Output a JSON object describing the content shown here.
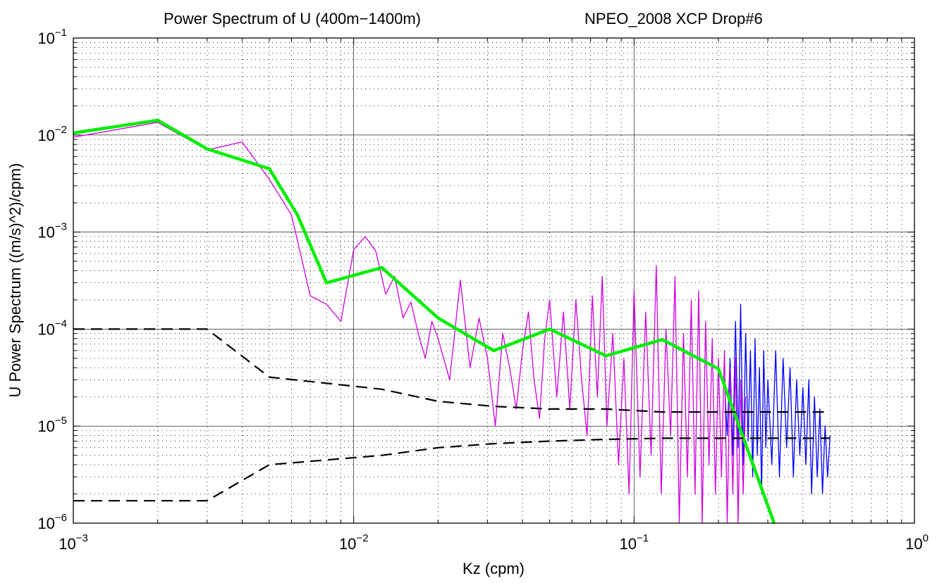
{
  "chart_data": {
    "type": "line",
    "title_left": "Power Spectrum of U  (400m−1400m)",
    "title_right": "NPEO_2008 XCP Drop#6",
    "xlabel": "Kz (cpm)",
    "ylabel": "U Power Spectrum ((m/s)^2)/cpm)",
    "xscale": "log",
    "yscale": "log",
    "xlim": [
      0.001,
      1
    ],
    "ylim": [
      1e-06,
      0.1
    ],
    "x_ticks": [
      {
        "value": 0.001,
        "base": "10",
        "exp": "−3"
      },
      {
        "value": 0.01,
        "base": "10",
        "exp": "−2"
      },
      {
        "value": 0.1,
        "base": "10",
        "exp": "−1"
      },
      {
        "value": 1,
        "base": "10",
        "exp": "0"
      }
    ],
    "y_ticks": [
      {
        "value": 1e-06,
        "base": "10",
        "exp": "−6"
      },
      {
        "value": 1e-05,
        "base": "10",
        "exp": "−5"
      },
      {
        "value": 0.0001,
        "base": "10",
        "exp": "−4"
      },
      {
        "value": 0.001,
        "base": "10",
        "exp": "−3"
      },
      {
        "value": 0.01,
        "base": "10",
        "exp": "−2"
      },
      {
        "value": 0.1,
        "base": "10",
        "exp": "−1"
      }
    ],
    "grid": true,
    "series": [
      {
        "color": "#0000ff",
        "style": "solid",
        "x": [
          0.21,
          0.215,
          0.22,
          0.225,
          0.23,
          0.235,
          0.24,
          0.245,
          0.25,
          0.255,
          0.26,
          0.265,
          0.27,
          0.275,
          0.28,
          0.285,
          0.29,
          0.295,
          0.3,
          0.31,
          0.32,
          0.33,
          0.34,
          0.35,
          0.36,
          0.37,
          0.38,
          0.39,
          0.4,
          0.41,
          0.42,
          0.43,
          0.44,
          0.45,
          0.46,
          0.47,
          0.48,
          0.49,
          0.5
        ],
        "y": [
          3e-05,
          8e-06,
          5e-05,
          5e-06,
          0.00012,
          6e-06,
          0.00018,
          4e-06,
          9e-05,
          7e-06,
          6e-05,
          3e-06,
          8e-05,
          5e-06,
          4e-05,
          2e-06,
          6e-05,
          6e-06,
          3e-05,
          4e-06,
          6e-05,
          3e-06,
          5e-05,
          6e-06,
          4e-05,
          3e-06,
          3e-05,
          5e-06,
          2.5e-05,
          4e-06,
          3e-05,
          2e-06,
          2e-05,
          3e-06,
          1.5e-05,
          2e-06,
          1e-05,
          3e-06,
          8e-06
        ]
      },
      {
        "color": "#d000e0",
        "style": "solid",
        "x": [
          0.001,
          0.002,
          0.003,
          0.004,
          0.005,
          0.006,
          0.007,
          0.008,
          0.009,
          0.01,
          0.011,
          0.012,
          0.013,
          0.014,
          0.015,
          0.016,
          0.017,
          0.018,
          0.019,
          0.02,
          0.022,
          0.024,
          0.026,
          0.028,
          0.03,
          0.032,
          0.034,
          0.036,
          0.038,
          0.04,
          0.042,
          0.044,
          0.046,
          0.048,
          0.05,
          0.053,
          0.056,
          0.059,
          0.062,
          0.065,
          0.068,
          0.071,
          0.074,
          0.077,
          0.08,
          0.084,
          0.088,
          0.092,
          0.096,
          0.1,
          0.105,
          0.11,
          0.115,
          0.12,
          0.125,
          0.13,
          0.135,
          0.14,
          0.145,
          0.15,
          0.155,
          0.16,
          0.165,
          0.17,
          0.175,
          0.18,
          0.185,
          0.19,
          0.195,
          0.2,
          0.205,
          0.21,
          0.215,
          0.22,
          0.225,
          0.23,
          0.235,
          0.24,
          0.245,
          0.25
        ],
        "y": [
          0.0095,
          0.0135,
          0.007,
          0.0085,
          0.0035,
          0.0015,
          0.00022,
          0.00018,
          0.00012,
          0.00066,
          0.0009,
          0.00063,
          0.00023,
          0.00035,
          0.00013,
          0.00019,
          9e-05,
          5e-05,
          0.00012,
          8e-05,
          3e-05,
          0.00032,
          4e-05,
          0.00013,
          5e-05,
          1e-05,
          9e-05,
          4e-05,
          1.5e-05,
          6e-05,
          0.00015,
          3e-05,
          1.2e-05,
          8e-05,
          0.0002,
          2e-05,
          0.00015,
          1.5e-05,
          0.0002,
          3e-05,
          8e-06,
          0.00022,
          2e-05,
          0.00035,
          1e-05,
          9e-05,
          4e-06,
          5e-05,
          2e-06,
          0.00025,
          3e-06,
          0.00015,
          5e-06,
          0.00045,
          2e-06,
          0.0001,
          8e-06,
          0.00035,
          1e-06,
          9e-05,
          3e-06,
          0.0002,
          2e-06,
          0.00025,
          1e-06,
          0.00012,
          4e-06,
          8e-05,
          2e-06,
          5e-05,
          3e-06,
          6e-05,
          1e-06,
          4e-05,
          2e-06,
          5e-05,
          1e-06,
          3e-05,
          2e-06,
          2e-05
        ]
      },
      {
        "color": "#00ee00",
        "style": "solid-thick",
        "x": [
          0.001,
          0.002,
          0.003,
          0.005,
          0.0063,
          0.008,
          0.0126,
          0.02,
          0.0316,
          0.05,
          0.0794,
          0.126,
          0.2,
          0.316
        ],
        "y": [
          0.0105,
          0.0142,
          0.0072,
          0.0045,
          0.0015,
          0.0003,
          0.00043,
          0.00013,
          6e-05,
          0.0001,
          5.3e-05,
          7.8e-05,
          3.9e-05,
          1e-06
        ]
      },
      {
        "color": "#000000",
        "style": "dashed",
        "x": [
          0.001,
          0.003,
          0.005,
          0.0126,
          0.02,
          0.0316,
          0.05,
          0.0794,
          0.126,
          0.2,
          0.5
        ],
        "y": [
          0.0001,
          0.0001,
          3.2e-05,
          2.4e-05,
          1.8e-05,
          1.6e-05,
          1.5e-05,
          1.5e-05,
          1.4e-05,
          1.4e-05,
          1.4e-05
        ]
      },
      {
        "color": "#000000",
        "style": "dashed",
        "x": [
          0.001,
          0.003,
          0.005,
          0.0126,
          0.02,
          0.0316,
          0.05,
          0.0794,
          0.126,
          0.2,
          0.5
        ],
        "y": [
          1.7e-06,
          1.7e-06,
          4e-06,
          5e-06,
          6e-06,
          6.6e-06,
          7e-06,
          7.3e-06,
          7.5e-06,
          7.5e-06,
          7.5e-06
        ]
      }
    ]
  }
}
